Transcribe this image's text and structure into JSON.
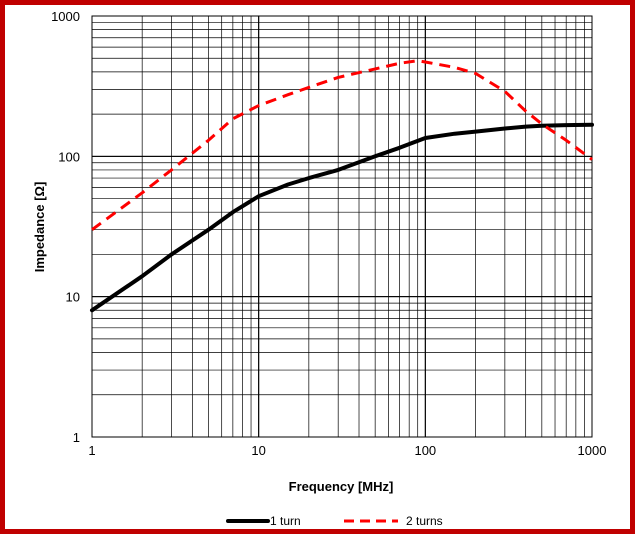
{
  "colors": {
    "frame": "#c00000",
    "series_1_turn": "#000000",
    "series_2_turns": "#ff0000"
  },
  "chart_data": {
    "type": "line",
    "title": "",
    "xlabel": "Frequency [MHz]",
    "ylabel": "Impedance [Ω]",
    "xscale": "log",
    "yscale": "log",
    "xlim": [
      1,
      1000
    ],
    "ylim": [
      1,
      1000
    ],
    "grid": true,
    "legend_position": "bottom",
    "xticks": [
      "1",
      "10",
      "100",
      "1000"
    ],
    "yticks": [
      "1",
      "10",
      "100",
      "1000"
    ],
    "series": [
      {
        "name": "1 turn",
        "style": "solid",
        "x": [
          1,
          2,
          3,
          5,
          7,
          10,
          15,
          20,
          30,
          50,
          70,
          100,
          150,
          200,
          300,
          400,
          500,
          700,
          1000
        ],
        "y": [
          8,
          14,
          20,
          30,
          40,
          52,
          63,
          70,
          80,
          100,
          115,
          135,
          145,
          150,
          158,
          163,
          165,
          167,
          168
        ]
      },
      {
        "name": "2 turns",
        "style": "dashed",
        "x": [
          1,
          2,
          3,
          5,
          7,
          10,
          15,
          20,
          30,
          50,
          70,
          90,
          100,
          150,
          200,
          300,
          400,
          500,
          700,
          1000
        ],
        "y": [
          30,
          55,
          80,
          130,
          185,
          230,
          275,
          310,
          365,
          420,
          460,
          480,
          470,
          430,
          390,
          290,
          210,
          170,
          130,
          95
        ]
      }
    ]
  }
}
